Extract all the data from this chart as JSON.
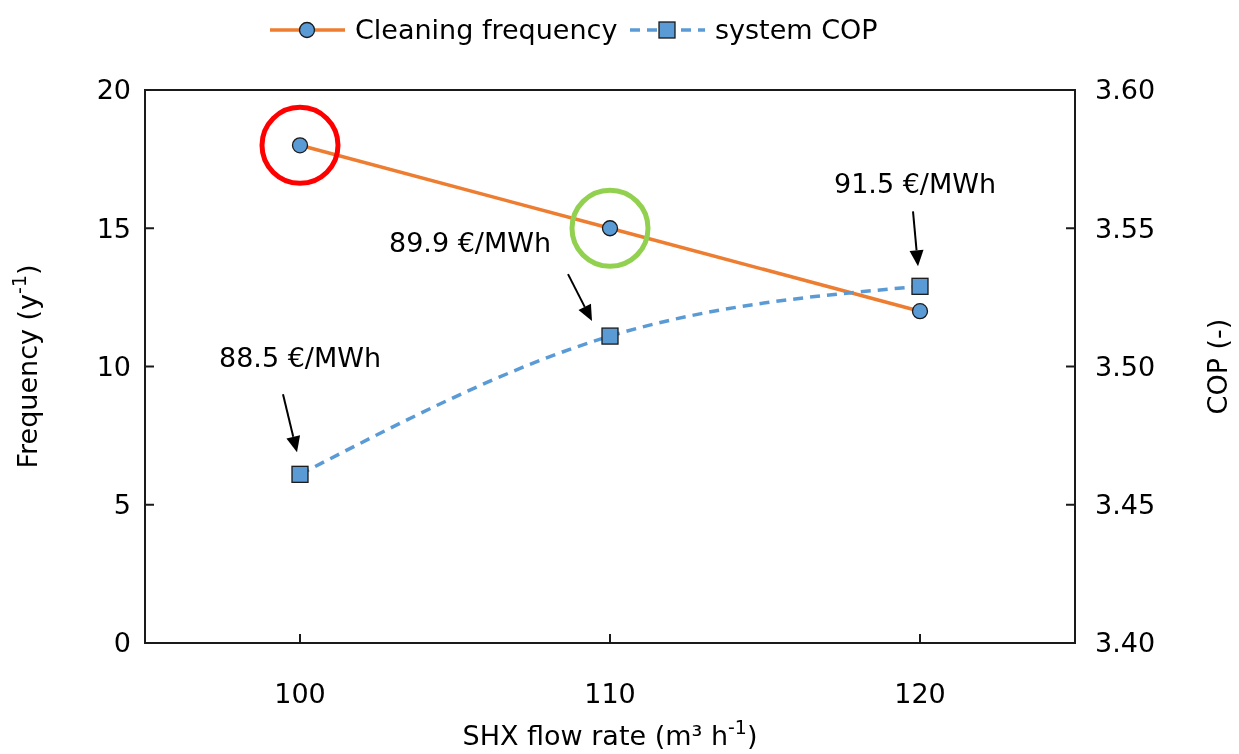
{
  "chart_data": {
    "type": "line",
    "xlabel": "SHX flow rate (m³ h$^{-1}$)",
    "ylabel": "Frequency  (y$^{-1}$)",
    "y2label": "COP (-)",
    "x": [
      100,
      110,
      120
    ],
    "xlim": [
      95,
      125
    ],
    "xticks": [
      100,
      110,
      120
    ],
    "ylim": [
      0,
      20
    ],
    "yticks": [
      0,
      5,
      10,
      15,
      20
    ],
    "y2lim": [
      3.4,
      3.6
    ],
    "y2ticks": [
      {
        "value": 3.4,
        "label": "3.40"
      },
      {
        "value": 3.45,
        "label": "3.45"
      },
      {
        "value": 3.5,
        "label": "3.50"
      },
      {
        "value": 3.55,
        "label": "3.55"
      },
      {
        "value": 3.6,
        "label": "3.60"
      }
    ],
    "series": [
      {
        "name": "Cleaning frequency",
        "color": "#ed7d31",
        "values": [
          18,
          15,
          12
        ],
        "marker": "circle",
        "line_style": "solid"
      },
      {
        "name": "system COP",
        "color": "#5b9bd5",
        "values": [
          3.461,
          3.511,
          3.529
        ],
        "marker": "square",
        "line_style": "dashed",
        "axis": "y2"
      }
    ],
    "annotations": [
      "88.5 €/MWh",
      "89.9 €/MWh",
      "91.5 €/MWh"
    ],
    "grid": false,
    "legend": "top"
  }
}
